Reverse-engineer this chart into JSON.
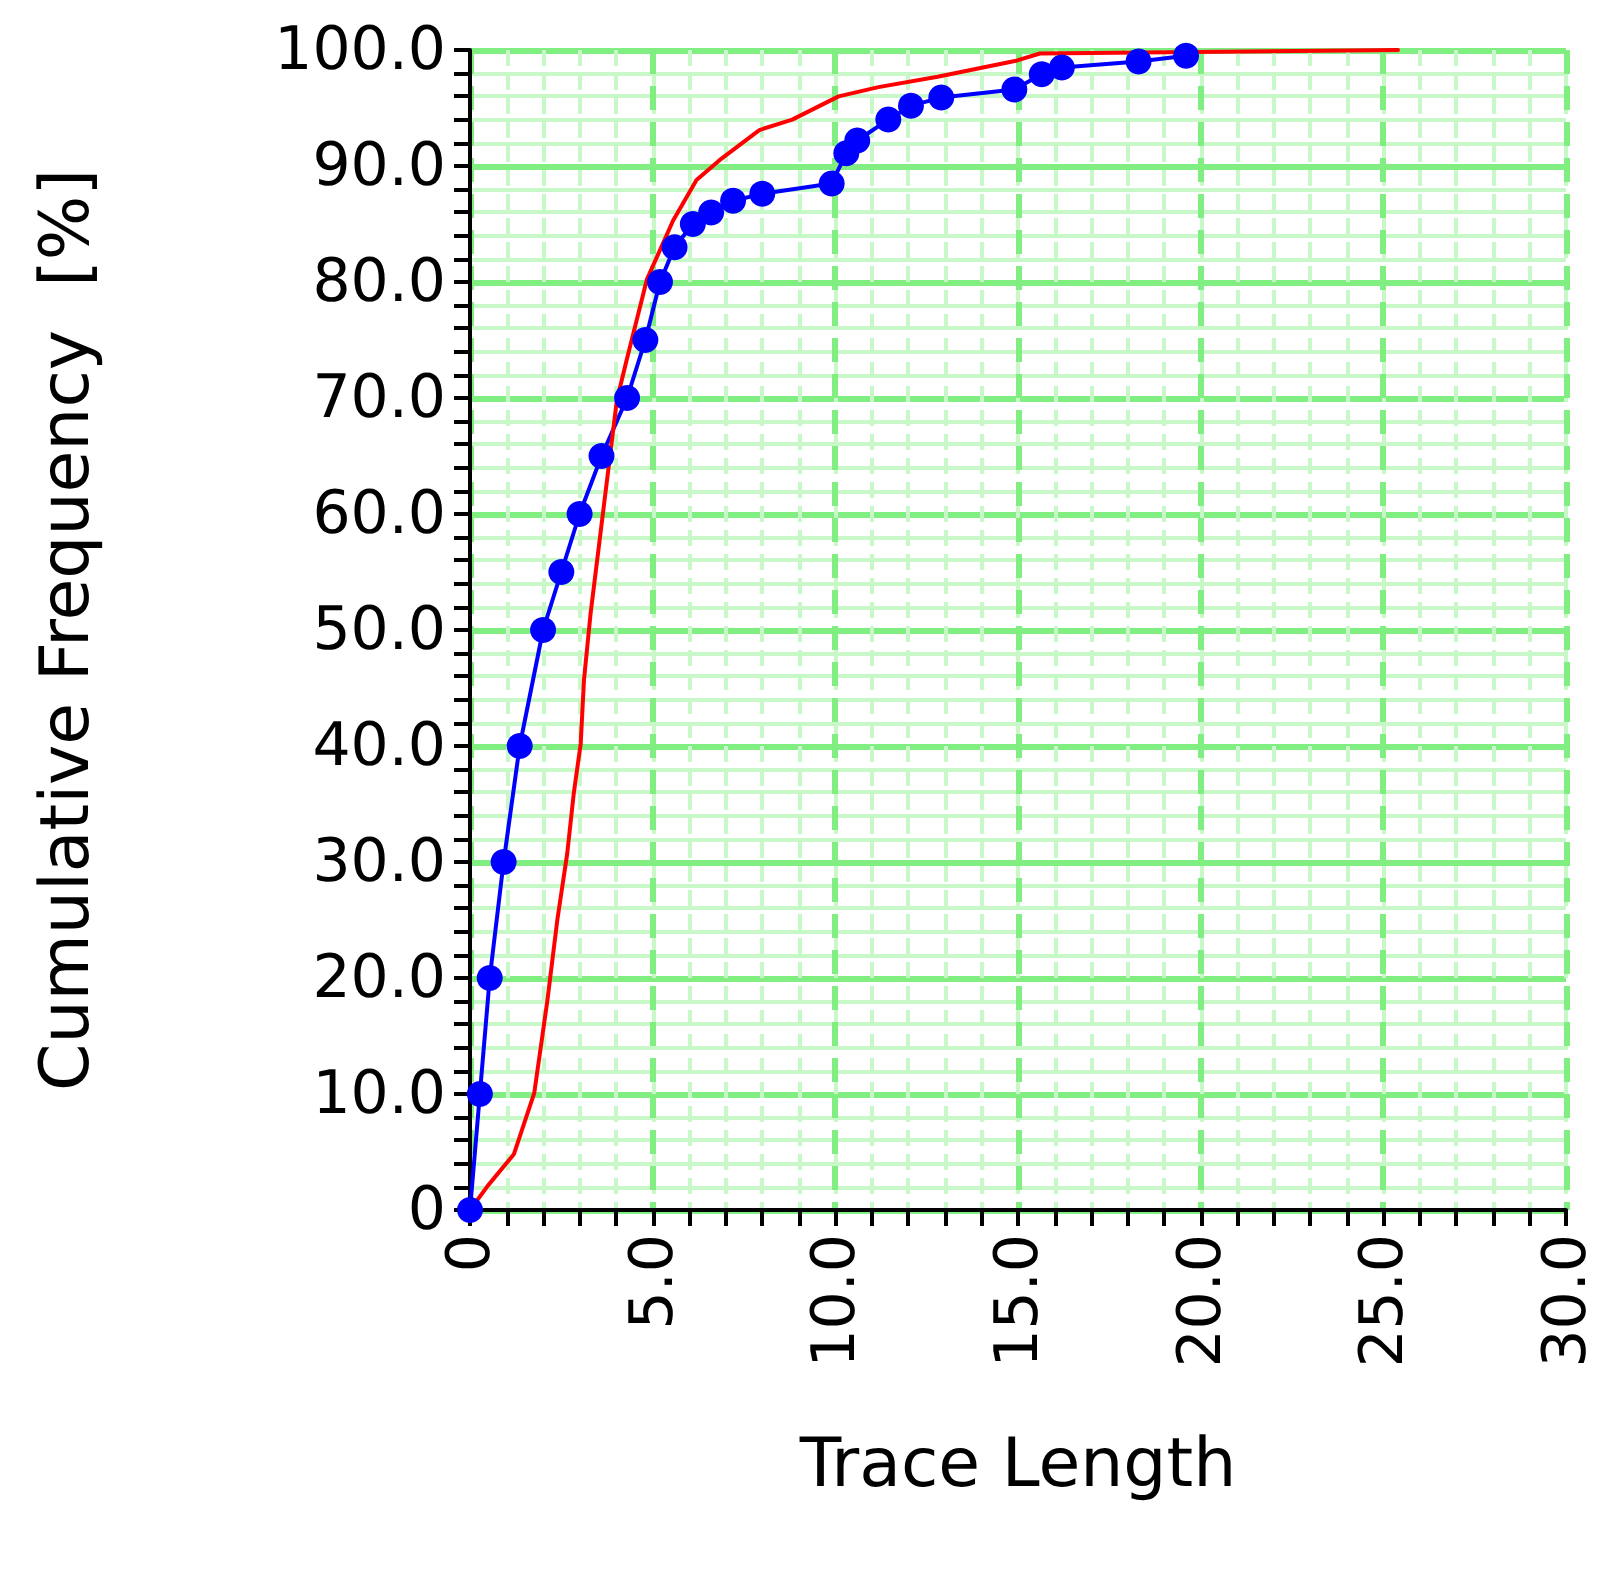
{
  "chart_data": {
    "type": "line",
    "xlabel": "Trace Length",
    "ylabel": "Cumulative Frequency  [%]",
    "xlim": [
      0,
      30
    ],
    "xticks": [
      0,
      {
        "value": 1,
        "label": null
      },
      {
        "value": 2,
        "label": null
      },
      {
        "value": 3,
        "label": null
      },
      {
        "value": 4,
        "label": null
      },
      {
        "value": 5,
        "label": "5.0"
      },
      {
        "value": 6,
        "label": null
      },
      {
        "value": 7,
        "label": null
      },
      {
        "value": 8,
        "label": null
      },
      {
        "value": 9,
        "label": null
      },
      {
        "value": 10,
        "label": "10.0"
      },
      {
        "value": 11,
        "label": null
      },
      {
        "value": 12,
        "label": null
      },
      {
        "value": 13,
        "label": null
      },
      {
        "value": 14,
        "label": null
      },
      {
        "value": 15,
        "label": "15.0"
      },
      {
        "value": 16,
        "label": null
      },
      {
        "value": 17,
        "label": null
      },
      {
        "value": 18,
        "label": null
      },
      {
        "value": 19,
        "label": null
      },
      {
        "value": 20,
        "label": "20.0"
      },
      {
        "value": 21,
        "label": null
      },
      {
        "value": 22,
        "label": null
      },
      {
        "value": 23,
        "label": null
      },
      {
        "value": 24,
        "label": null
      },
      {
        "value": 25,
        "label": "25.0"
      },
      {
        "value": 26,
        "label": null
      },
      {
        "value": 27,
        "label": null
      },
      {
        "value": 28,
        "label": null
      },
      {
        "value": 29,
        "label": null
      },
      {
        "value": 30,
        "label": "30.0"
      }
    ],
    "ylim": [
      0,
      100
    ],
    "yticks": [
      0,
      {
        "value": 2,
        "label": null
      },
      {
        "value": 4,
        "label": null
      },
      {
        "value": 6,
        "label": null
      },
      {
        "value": 8,
        "label": null
      },
      {
        "value": 10,
        "label": "10.0"
      },
      {
        "value": 12,
        "label": null
      },
      {
        "value": 14,
        "label": null
      },
      {
        "value": 16,
        "label": null
      },
      {
        "value": 18,
        "label": null
      },
      {
        "value": 20,
        "label": "20.0"
      },
      {
        "value": 22,
        "label": null
      },
      {
        "value": 24,
        "label": null
      },
      {
        "value": 26,
        "label": null
      },
      {
        "value": 28,
        "label": null
      },
      {
        "value": 30,
        "label": "30.0"
      },
      {
        "value": 32,
        "label": null
      },
      {
        "value": 34,
        "label": null
      },
      {
        "value": 36,
        "label": null
      },
      {
        "value": 38,
        "label": null
      },
      {
        "value": 40,
        "label": "40.0"
      },
      {
        "value": 42,
        "label": null
      },
      {
        "value": 44,
        "label": null
      },
      {
        "value": 46,
        "label": null
      },
      {
        "value": 48,
        "label": null
      },
      {
        "value": 50,
        "label": "50.0"
      },
      {
        "value": 52,
        "label": null
      },
      {
        "value": 54,
        "label": null
      },
      {
        "value": 56,
        "label": null
      },
      {
        "value": 58,
        "label": null
      },
      {
        "value": 60,
        "label": "60.0"
      },
      {
        "value": 62,
        "label": null
      },
      {
        "value": 64,
        "label": null
      },
      {
        "value": 66,
        "label": null
      },
      {
        "value": 68,
        "label": null
      },
      {
        "value": 70,
        "label": "70.0"
      },
      {
        "value": 72,
        "label": null
      },
      {
        "value": 74,
        "label": null
      },
      {
        "value": 76,
        "label": null
      },
      {
        "value": 78,
        "label": null
      },
      {
        "value": 80,
        "label": "80.0"
      },
      {
        "value": 82,
        "label": null
      },
      {
        "value": 84,
        "label": null
      },
      {
        "value": 86,
        "label": null
      },
      {
        "value": 88,
        "label": null
      },
      {
        "value": 90,
        "label": "90.0"
      },
      {
        "value": 92,
        "label": null
      },
      {
        "value": 94,
        "label": null
      },
      {
        "value": 96,
        "label": null
      },
      {
        "value": 98,
        "label": null
      },
      {
        "value": 100,
        "label": "100.0"
      }
    ],
    "grid": true,
    "series": [
      {
        "color": "#0000ff",
        "marker": "circle",
        "x": [
          0,
          0.27,
          0.54,
          0.92,
          1.36,
          2.0,
          2.5,
          3.0,
          3.6,
          4.3,
          4.8,
          5.2,
          5.6,
          6.1,
          6.6,
          7.2,
          8.0,
          9.9,
          10.3,
          10.6,
          11.45,
          12.07,
          12.9,
          14.9,
          15.65,
          16.2,
          18.3,
          19.6
        ],
        "values": [
          0,
          10,
          20,
          30,
          40,
          50,
          55,
          60,
          65,
          70,
          75,
          80,
          83,
          85,
          86,
          87,
          87.6,
          88.5,
          91.1,
          92.2,
          94,
          95.2,
          95.9,
          96.6,
          97.9,
          98.5,
          99,
          99.5
        ]
      },
      {
        "color": "#ff0000",
        "marker": "none",
        "x": [
          0,
          0.49,
          1.2,
          1.76,
          2.12,
          2.39,
          2.66,
          2.84,
          3.03,
          3.12,
          3.3,
          3.66,
          4.02,
          4.29,
          4.84,
          5.56,
          6.2,
          6.83,
          7.92,
          8.82,
          10.09,
          11.18,
          12.8,
          14.98,
          15.6,
          25.4
        ],
        "values": [
          0,
          2.1,
          4.8,
          10.1,
          18.1,
          25,
          30.7,
          35.9,
          40.2,
          45.7,
          51.4,
          60.6,
          69.8,
          73.3,
          80.2,
          85.3,
          88.8,
          90.5,
          93.1,
          94,
          96,
          96.8,
          97.7,
          99.1,
          99.7,
          100
        ]
      }
    ]
  }
}
